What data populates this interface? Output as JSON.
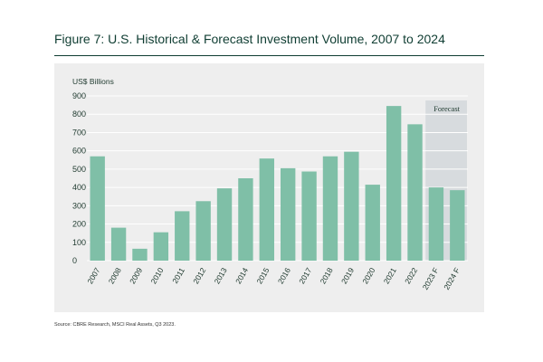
{
  "figure": {
    "title": "Figure 7: U.S. Historical & Forecast Investment Volume, 2007 to 2024",
    "source": "Source: CBRE Research, MSCI Real Assets, Q3 2023."
  },
  "colors": {
    "bar": "#7fbfa7",
    "panel_bg": "#eeeeee",
    "forecast_bg": "#d7dbde",
    "grid": "#ffffff",
    "text": "#1f3a2f",
    "title": "#0f3d32"
  },
  "chart_data": {
    "type": "bar",
    "title": "Figure 7: U.S. Historical & Forecast Investment Volume, 2007 to 2024",
    "ylabel": "US$ Billions",
    "xlabel": "",
    "ylim": [
      0,
      900
    ],
    "yticks": [
      0,
      100,
      200,
      300,
      400,
      500,
      600,
      700,
      800,
      900
    ],
    "grid": true,
    "categories": [
      "2007",
      "2008",
      "2009",
      "2010",
      "2011",
      "2012",
      "2013",
      "2014",
      "2015",
      "2016",
      "2017",
      "2018",
      "2019",
      "2020",
      "2021",
      "2022",
      "2023 F",
      "2024 F"
    ],
    "values": [
      570,
      180,
      65,
      155,
      270,
      325,
      395,
      450,
      558,
      505,
      487,
      570,
      595,
      415,
      845,
      745,
      400,
      385
    ],
    "forecast_label": "Forecast",
    "forecast_categories": [
      "2023 F",
      "2024 F"
    ]
  }
}
